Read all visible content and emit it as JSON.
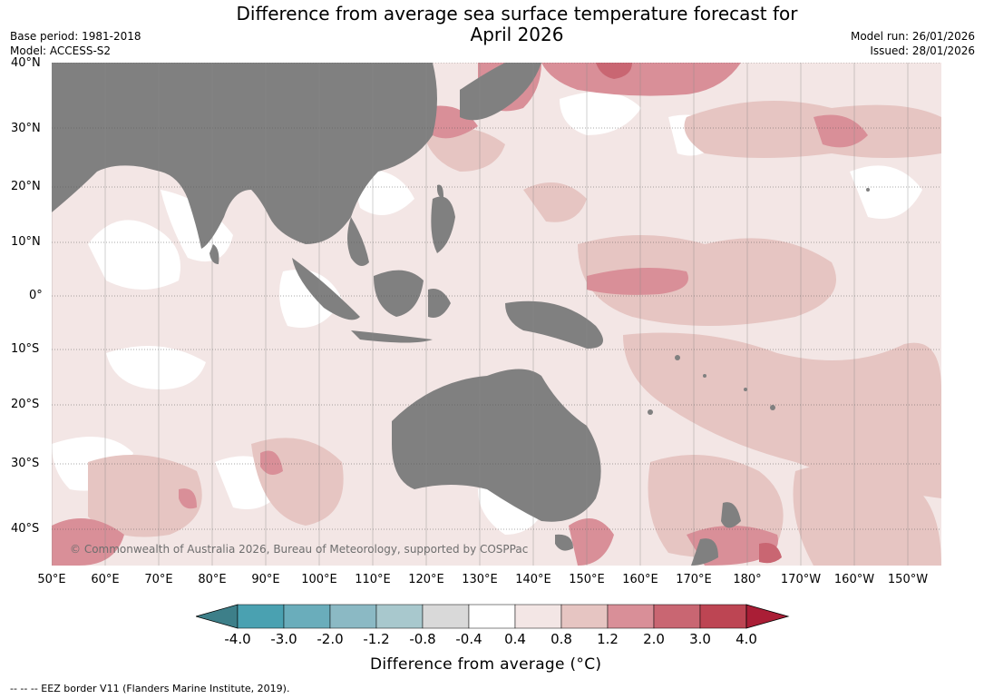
{
  "title_line1": "Difference from average sea surface temperature forecast for",
  "title_line2": "April 2026",
  "base_period": "Base period: 1981-2018",
  "model": "Model: ACCESS-S2",
  "model_run": "Model run: 26/01/2026",
  "issued": "Issued: 28/01/2026",
  "lat_labels": [
    "40°N",
    "30°N",
    "20°N",
    "10°N",
    "0°",
    "10°S",
    "20°S",
    "30°S",
    "40°S"
  ],
  "lon_labels": [
    "50°E",
    "60°E",
    "70°E",
    "80°E",
    "90°E",
    "100°E",
    "110°E",
    "120°E",
    "130°E",
    "140°E",
    "150°E",
    "160°E",
    "170°E",
    "180°",
    "170°W",
    "160°W",
    "150°W"
  ],
  "copyright": "© Commonwealth of Australia 2026, Bureau of Meteorology, supported by COSPPac",
  "colorbar": {
    "ticks": [
      "-4.0",
      "-3.0",
      "-2.0",
      "-1.2",
      "-0.8",
      "-0.4",
      "0.4",
      "0.8",
      "1.2",
      "2.0",
      "3.0",
      "4.0"
    ],
    "colors": [
      "#3d7f89",
      "#4aa1b1",
      "#6aadbb",
      "#8bb9c4",
      "#a8c8cd",
      "#d9d9d9",
      "#ffffff",
      "#f3e6e5",
      "#e6c5c2",
      "#d98f98",
      "#c96672",
      "#bd4553",
      "#aa1e36"
    ],
    "label": "Difference from average (°C)"
  },
  "footer": "-- -- -- EEZ border V11 (Flanders Marine Institute, 2019).",
  "colors": {
    "land": "#808080",
    "ocean_base": "#f3e6e5",
    "warm_1": "#e6c5c2",
    "warm_2": "#d98f98",
    "warm_3": "#c96672",
    "neutral": "#ffffff"
  }
}
